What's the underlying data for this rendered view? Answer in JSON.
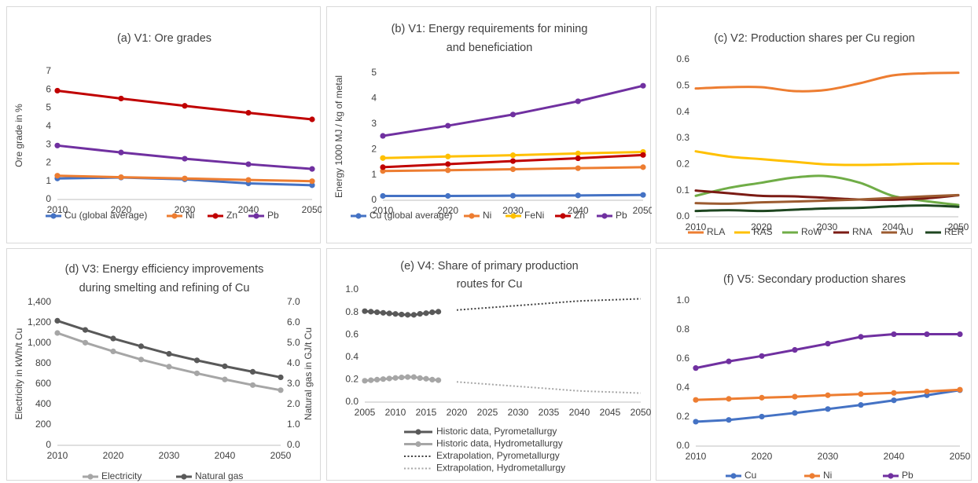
{
  "chart_data": [
    {
      "panel": "a",
      "type": "line",
      "title": "(a) V1: Ore grades",
      "title_lines": [
        "(a) V1: Ore grades"
      ],
      "xlabel": "",
      "ylabel": "Ore grade in %",
      "x": [
        2010,
        2020,
        2030,
        2040,
        2050
      ],
      "x_ticks": [
        2010,
        2020,
        2030,
        2040,
        2050
      ],
      "ylim": [
        0,
        7
      ],
      "y_ticks": [
        "0",
        "1",
        "2",
        "3",
        "4",
        "5",
        "6",
        "7"
      ],
      "grid": false,
      "legend": "bottom",
      "series": [
        {
          "name": "Cu (global average)",
          "color": "#4472C4",
          "values": [
            1.15,
            1.2,
            1.1,
            0.88,
            0.78
          ]
        },
        {
          "name": "Ni",
          "color": "#ED7D31",
          "values": [
            1.3,
            1.22,
            1.15,
            1.07,
            1.0
          ]
        },
        {
          "name": "Zn",
          "color": "#C00000",
          "values": [
            5.95,
            5.52,
            5.12,
            4.74,
            4.38
          ]
        },
        {
          "name": "Pb",
          "color": "#7030A0",
          "values": [
            2.95,
            2.57,
            2.23,
            1.93,
            1.67
          ]
        }
      ]
    },
    {
      "panel": "b",
      "type": "line",
      "title": "(b) V1: Energy requirements for mining and beneficiation",
      "title_lines": [
        "(b) V1: Energy requirements for mining",
        "and beneficiation"
      ],
      "xlabel": "",
      "ylabel": "Energy 1000 MJ / kg of metal",
      "x": [
        2010,
        2020,
        2030,
        2040,
        2050
      ],
      "x_ticks": [
        2010,
        2020,
        2030,
        2040,
        2050
      ],
      "ylim": [
        0,
        5
      ],
      "y_ticks": [
        "0",
        "1",
        "2",
        "3",
        "4",
        "5"
      ],
      "grid": false,
      "legend": "bottom",
      "series": [
        {
          "name": "Cu (global average)",
          "color": "#4472C4",
          "values": [
            0.17,
            0.17,
            0.18,
            0.19,
            0.21
          ]
        },
        {
          "name": "Ni",
          "color": "#ED7D31",
          "values": [
            1.15,
            1.18,
            1.22,
            1.26,
            1.3
          ]
        },
        {
          "name": "FeNi",
          "color": "#FFC000",
          "values": [
            1.66,
            1.72,
            1.77,
            1.84,
            1.9
          ]
        },
        {
          "name": "Zn",
          "color": "#C00000",
          "values": [
            1.3,
            1.42,
            1.54,
            1.65,
            1.78
          ]
        },
        {
          "name": "Pb",
          "color": "#7030A0",
          "values": [
            2.53,
            2.93,
            3.37,
            3.89,
            4.5
          ]
        }
      ]
    },
    {
      "panel": "c",
      "type": "line",
      "title": "(c) V2: Production shares per Cu region",
      "title_lines": [
        "(c) V2: Production shares per Cu region"
      ],
      "xlabel": "",
      "ylabel": "",
      "x": [
        2010,
        2015,
        2020,
        2025,
        2030,
        2035,
        2040,
        2045,
        2050
      ],
      "x_ticks": [
        2010,
        2020,
        2030,
        2040,
        2050
      ],
      "ylim": [
        0,
        0.6
      ],
      "y_ticks": [
        "0.0",
        "0.1",
        "0.2",
        "0.3",
        "0.4",
        "0.5",
        "0.6"
      ],
      "grid": false,
      "legend": "bottom",
      "series": [
        {
          "name": "RLA",
          "color": "#ED7D31",
          "values": [
            0.49,
            0.495,
            0.495,
            0.48,
            0.485,
            0.51,
            0.54,
            0.548,
            0.55
          ]
        },
        {
          "name": "RAS",
          "color": "#FFC000",
          "values": [
            0.25,
            0.23,
            0.22,
            0.21,
            0.2,
            0.198,
            0.2,
            0.203,
            0.203
          ]
        },
        {
          "name": "RoW",
          "color": "#70AD47",
          "values": [
            0.08,
            0.11,
            0.13,
            0.15,
            0.155,
            0.13,
            0.08,
            0.06,
            0.045
          ]
        },
        {
          "name": "RNA",
          "color": "#7B1B14",
          "values": [
            0.1,
            0.09,
            0.08,
            0.078,
            0.072,
            0.066,
            0.065,
            0.07,
            0.082
          ]
        },
        {
          "name": "AU",
          "color": "#9C5B30",
          "values": [
            0.052,
            0.05,
            0.055,
            0.058,
            0.062,
            0.066,
            0.072,
            0.078,
            0.083
          ]
        },
        {
          "name": "RER",
          "color": "#1E4620",
          "values": [
            0.022,
            0.025,
            0.022,
            0.027,
            0.032,
            0.034,
            0.04,
            0.043,
            0.038
          ]
        }
      ]
    },
    {
      "panel": "d",
      "type": "line",
      "title": "(d) V3: Energy efficiency improvements during smelting and refining of Cu",
      "title_lines": [
        "(d) V3: Energy efficiency improvements",
        "during smelting and refining of Cu"
      ],
      "xlabel": "",
      "ylabel": "Electricity in kWh/t Cu",
      "y2label": "Natural gas in GJ/t Cu",
      "x": [
        2010,
        2015,
        2020,
        2025,
        2030,
        2035,
        2040,
        2045,
        2050
      ],
      "x_ticks": [
        2010,
        2020,
        2030,
        2040,
        2050
      ],
      "ylim": [
        0,
        1400
      ],
      "y_ticks": [
        "0",
        "200",
        "400",
        "600",
        "800",
        "1,000",
        "1,200",
        "1,400"
      ],
      "y2lim": [
        0,
        7
      ],
      "y2_ticks": [
        "0.0",
        "1.0",
        "2.0",
        "3.0",
        "4.0",
        "5.0",
        "6.0",
        "7.0"
      ],
      "grid": false,
      "legend": "bottom",
      "series": [
        {
          "name": "Electricity",
          "color": "#A6A6A6",
          "axis": "left",
          "values": [
            1100,
            1005,
            920,
            840,
            770,
            705,
            645,
            590,
            540
          ]
        },
        {
          "name": "Natural gas",
          "color": "#595959",
          "axis": "right",
          "values": [
            6.1,
            5.65,
            5.23,
            4.85,
            4.48,
            4.16,
            3.87,
            3.6,
            3.33
          ]
        }
      ]
    },
    {
      "panel": "e",
      "type": "line",
      "title": "(e) V4: Share of primary production routes for Cu",
      "title_lines": [
        "(e) V4: Share of primary production",
        "routes for Cu"
      ],
      "xlabel": "",
      "ylabel": "",
      "x_ticks": [
        2005,
        2010,
        2015,
        2020,
        2025,
        2030,
        2035,
        2040,
        2045,
        2050
      ],
      "xlim": [
        2005,
        2050
      ],
      "ylim": [
        0,
        1
      ],
      "y_ticks": [
        "0.0",
        "0.2",
        "0.4",
        "0.6",
        "0.8",
        "1.0"
      ],
      "grid": false,
      "legend": "bottom",
      "series": [
        {
          "name": "Historic data, Pyrometallurgy",
          "color": "#595959",
          "style": "solid-markers",
          "x": [
            2005,
            2006,
            2007,
            2008,
            2009,
            2010,
            2011,
            2012,
            2013,
            2014,
            2015,
            2016,
            2017
          ],
          "values": [
            0.81,
            0.805,
            0.8,
            0.795,
            0.79,
            0.785,
            0.78,
            0.777,
            0.777,
            0.786,
            0.792,
            0.8,
            0.805
          ]
        },
        {
          "name": "Historic data, Hydrometallurgy",
          "color": "#A6A6A6",
          "style": "solid-markers",
          "x": [
            2005,
            2006,
            2007,
            2008,
            2009,
            2010,
            2011,
            2012,
            2013,
            2014,
            2015,
            2016,
            2017
          ],
          "values": [
            0.19,
            0.195,
            0.2,
            0.205,
            0.21,
            0.215,
            0.22,
            0.223,
            0.223,
            0.214,
            0.208,
            0.2,
            0.195
          ]
        },
        {
          "name": "Extrapolation, Pyrometallurgy",
          "color": "#404040",
          "style": "dotted",
          "x": [
            2020,
            2025,
            2030,
            2035,
            2040,
            2045,
            2050
          ],
          "values": [
            0.82,
            0.84,
            0.86,
            0.88,
            0.9,
            0.91,
            0.92
          ]
        },
        {
          "name": "Extrapolation, Hydrometallurgy",
          "color": "#A6A6A6",
          "style": "dotted",
          "x": [
            2020,
            2025,
            2030,
            2035,
            2040,
            2045,
            2050
          ],
          "values": [
            0.18,
            0.16,
            0.14,
            0.12,
            0.1,
            0.09,
            0.08
          ]
        }
      ]
    },
    {
      "panel": "f",
      "type": "line",
      "title": "(f) V5: Secondary production shares",
      "title_lines": [
        "(f) V5: Secondary production shares"
      ],
      "xlabel": "",
      "ylabel": "",
      "x": [
        2010,
        2015,
        2020,
        2025,
        2030,
        2035,
        2040,
        2045,
        2050
      ],
      "x_ticks": [
        2010,
        2020,
        2030,
        2040,
        2050
      ],
      "ylim": [
        0,
        1
      ],
      "y_ticks": [
        "0.0",
        "0.2",
        "0.4",
        "0.6",
        "0.8",
        "1.0"
      ],
      "grid": false,
      "legend": "bottom",
      "series": [
        {
          "name": "Cu",
          "color": "#4472C4",
          "values": [
            0.168,
            0.18,
            0.203,
            0.228,
            0.255,
            0.283,
            0.315,
            0.35,
            0.385
          ]
        },
        {
          "name": "Ni",
          "color": "#ED7D31",
          "values": [
            0.318,
            0.325,
            0.333,
            0.34,
            0.35,
            0.358,
            0.366,
            0.376,
            0.388
          ]
        },
        {
          "name": "Pb",
          "color": "#7030A0",
          "values": [
            0.537,
            0.583,
            0.62,
            0.662,
            0.705,
            0.752,
            0.77,
            0.77,
            0.77
          ]
        }
      ]
    }
  ]
}
